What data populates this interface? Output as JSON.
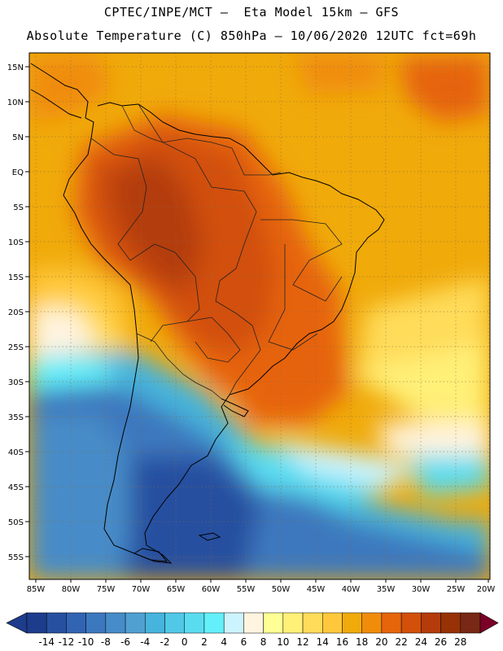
{
  "header": {
    "line1": "CPTEC/INPE/MCT –  Eta Model 15km – GFS",
    "line2": "Absolute Temperature (C) 850hPa – 10/06/2020 12UTC fct=69h"
  },
  "map": {
    "lat_labels": [
      "15N",
      "10N",
      "5N",
      "EQ",
      "5S",
      "10S",
      "15S",
      "20S",
      "25S",
      "30S",
      "35S",
      "40S",
      "45S",
      "50S",
      "55S"
    ],
    "lon_labels": [
      "85W",
      "80W",
      "75W",
      "70W",
      "65W",
      "60W",
      "55W",
      "50W",
      "45W",
      "40W",
      "35W",
      "30W",
      "25W",
      "20W"
    ],
    "lat_range": [
      15,
      -57
    ],
    "lon_range": [
      -86,
      -20
    ],
    "grid": "dotted"
  },
  "colorbar": {
    "labels": [
      "-14",
      "-12",
      "-10",
      "-8",
      "-6",
      "-4",
      "-2",
      "0",
      "2",
      "4",
      "6",
      "8",
      "10",
      "12",
      "14",
      "16",
      "18",
      "20",
      "22",
      "24",
      "26",
      "28"
    ],
    "colors": [
      "#1e3c8c",
      "#2850a0",
      "#3264b4",
      "#3c78be",
      "#468cc8",
      "#50a0d2",
      "#46b4dc",
      "#50c8e6",
      "#5adcf0",
      "#64f0fa",
      "#ccf4ff",
      "#fff4e0",
      "#ffff96",
      "#fff078",
      "#ffdc5a",
      "#ffc83c",
      "#f0aa0a",
      "#f08c0a",
      "#e6640a",
      "#d2500a",
      "#b43c0a",
      "#963205",
      "#782814"
    ]
  }
}
